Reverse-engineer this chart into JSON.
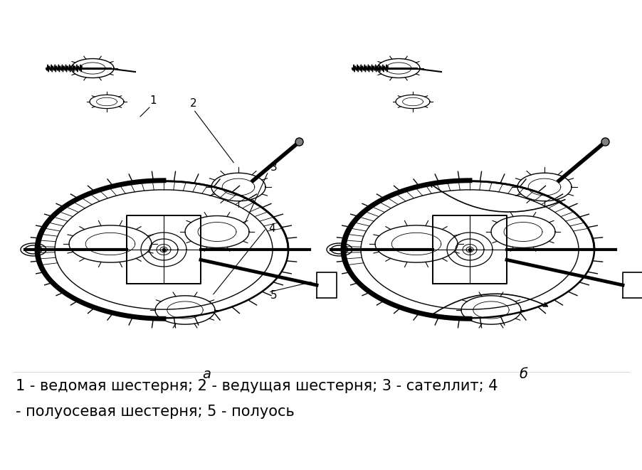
{
  "background_color": "#ffffff",
  "fig_width": 9.03,
  "fig_height": 6.61,
  "dpi": 100,
  "caption_line1": "1 - ведомая шестерня; 2 - ведущая шестерня; 3 - сателлит; 4",
  "caption_line2": "- полуосевая шестерня; 5 - полуось",
  "caption_fontsize": 15,
  "caption_color": "#000000",
  "label_a": "а",
  "label_b": "б",
  "label_fontsize": 14
}
